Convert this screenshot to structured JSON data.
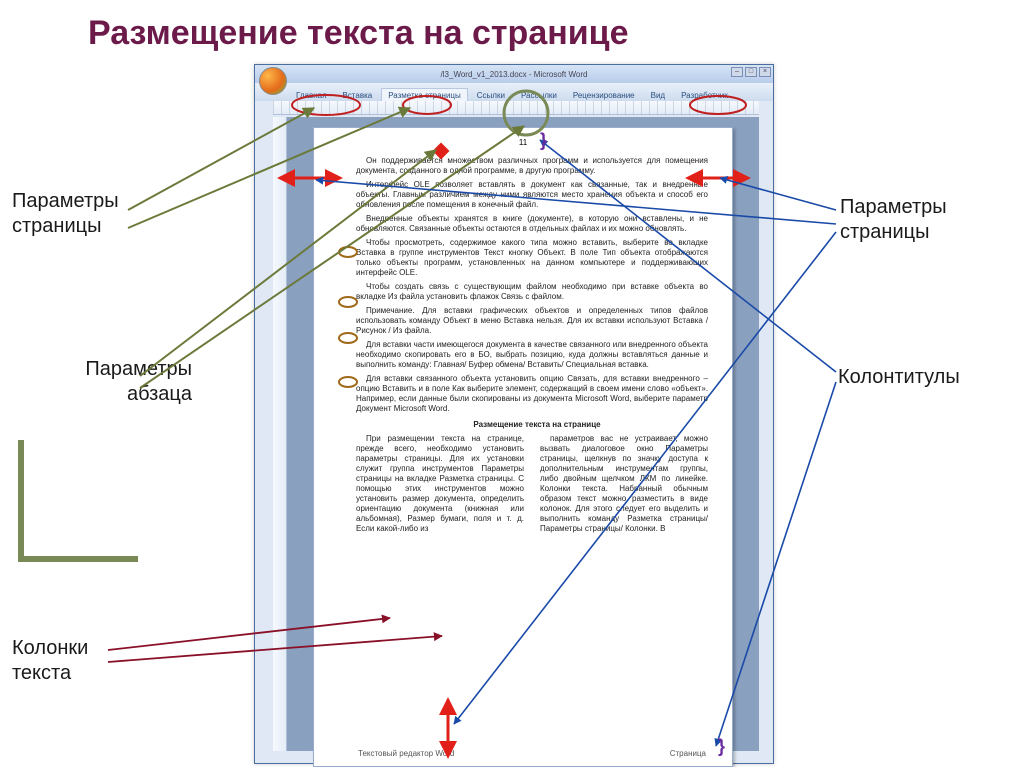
{
  "slide": {
    "title": "Размещение текста на странице",
    "title_color": "#6b1a49",
    "title_fontsize": 34
  },
  "labels": {
    "page_params_left": "Параметры\nстраницы",
    "page_params_right": "Параметры\nстраницы",
    "paragraph_params": "Параметры\nабзаца",
    "headers_footers": "Колонтитулы",
    "text_columns": "Колонки\nтекста"
  },
  "word_app": {
    "window_title": "/l3_Word_v1_2013.docx - Microsoft Word",
    "tabs": [
      "Главная",
      "Вставка",
      "Разметка страницы",
      "Ссылки",
      "Рассылки",
      "Рецензирование",
      "Вид",
      "Разработчик"
    ],
    "active_tab_index": 2
  },
  "document": {
    "page_number": "11",
    "footer_left": "Текстовый редактор Word",
    "footer_right": "Страница",
    "section_heading": "Размещение текста на странице",
    "paragraphs": [
      "Он поддерживается множеством различных программ и используется для помещения документа, созданного в одной программе, в другую программу.",
      "Интерфейс OLE позволяет вставлять в документ как связанные, так и внедренные объекты. Главным различием между ними являются место хранения объекта и способ его обновления после помещения в конечный файл.",
      "Внедренные объекты хранятся в книге (документе), в которую они вставлены, и не обновляются. Связанные объекты остаются в отдельных файлах и их можно обновлять.",
      "Чтобы просмотреть, содержимое какого типа можно вставить, выберите во вкладке Вставка в группе инструментов Текст кнопку Объект. В поле Тип объекта отображаются только объекты программ, установленных на данном компьютере и поддерживающих интерфейс OLE.",
      "Чтобы создать связь с существующим файлом необходимо при вставке объекта во вкладке Из файла установить флажок Связь с файлом.",
      "Примечание. Для вставки графических объектов и определенных типов файлов использовать команду Объект в меню Вставка нельзя. Для их вставки используют Вставка / Рисунок / Из файла.",
      "Для вставки части имеющегося документа в качестве связанного или внедренного объекта необходимо скопировать его в БО, выбрать позицию, куда должны вставляться данные и выполнить команду: Главная/ Буфер обмена/ Вставить/ Специальная вставка.",
      "Для вставки связанного объекта установить опцию Связать, для вставки внедренного – опцию Вставить и в поле Как выберите элемент, содержащий в своем имени слово «объект». Например, если данные были скопированы из документа Microsoft Word, выберите параметр Документ Microsoft Word."
    ],
    "col_left": "При размещении текста на странице, прежде всего, необходимо установить параметры страницы. Для их установки служит группа инструментов Параметры страницы на вкладке Разметка страницы. С помощью этих инструментов можно установить размер документа, определить ориентацию документа (книжная или альбомная), Размер бумаги, поля и т. д. Если какой-либо из",
    "col_right": "параметров вас не устраивает, можно вызвать диалоговое окно Параметры страницы, щелкнув по значку доступа к дополнительным инструментам группы, либо двойным щелчком ЛКМ по линейке.\nКолонки текста. Набранный обычным образом текст можно разместить в виде колонок. Для этого следует его выделить и выполнить команду Разметка страницы/ Параметры страницы/ Колонки. В"
  },
  "styling": {
    "accent_color": "#7a8a56",
    "callout_line_color": "#6b7a3a",
    "red_arrow_color": "#e2201a",
    "blue_line_color": "#1a4aa8",
    "ellipse_stroke": "#c02020",
    "circle_stroke": "#7a8a56",
    "word_bg": "#dfe8f4",
    "page_bg": "#ffffff"
  }
}
